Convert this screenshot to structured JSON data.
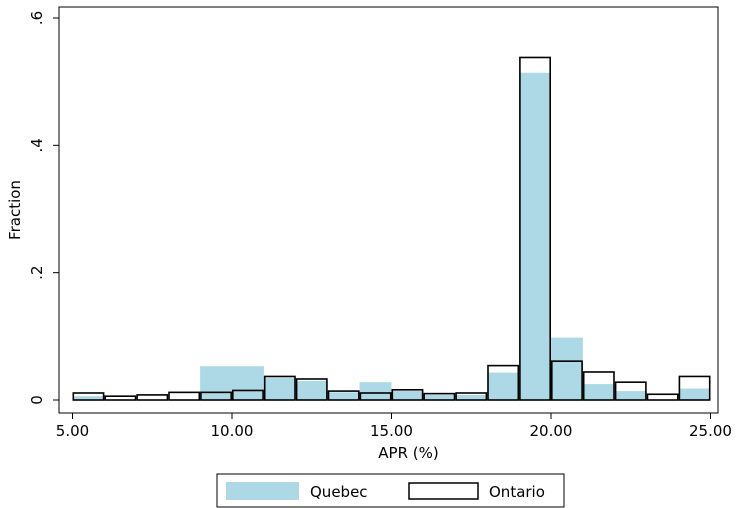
{
  "chart_data": {
    "type": "bar",
    "subtype": "overlaid-histogram",
    "xlabel": "APR (%)",
    "ylabel": "Fraction",
    "xlim": [
      5,
      25
    ],
    "ylim": [
      0,
      0.6
    ],
    "x_ticks": [
      {
        "value": 5,
        "label": "5.00"
      },
      {
        "value": 10,
        "label": "10.00"
      },
      {
        "value": 15,
        "label": "15.00"
      },
      {
        "value": 20,
        "label": "20.00"
      },
      {
        "value": 25,
        "label": "25.00"
      }
    ],
    "y_ticks": [
      {
        "value": 0,
        "label": "0"
      },
      {
        "value": 0.2,
        "label": ".2"
      },
      {
        "value": 0.4,
        "label": ".4"
      },
      {
        "value": 0.6,
        "label": ".6"
      }
    ],
    "grid": false,
    "legend_position": "bottom",
    "series": [
      {
        "name": "Quebec",
        "style": "filled",
        "color": "#add8e6",
        "bins": [
          {
            "x0": 5.0,
            "x1": 6.0,
            "value": 0.006
          },
          {
            "x0": 9.0,
            "x1": 11.0,
            "value": 0.053
          },
          {
            "x0": 11.0,
            "x1": 12.0,
            "value": 0.035
          },
          {
            "x0": 12.0,
            "x1": 13.0,
            "value": 0.03
          },
          {
            "x0": 13.0,
            "x1": 14.0,
            "value": 0.012
          },
          {
            "x0": 14.0,
            "x1": 15.0,
            "value": 0.028
          },
          {
            "x0": 15.0,
            "x1": 16.0,
            "value": 0.014
          },
          {
            "x0": 16.0,
            "x1": 17.0,
            "value": 0.008
          },
          {
            "x0": 17.0,
            "x1": 18.0,
            "value": 0.008
          },
          {
            "x0": 18.0,
            "x1": 19.0,
            "value": 0.043
          },
          {
            "x0": 19.0,
            "x1": 20.0,
            "value": 0.514
          },
          {
            "x0": 20.0,
            "x1": 21.0,
            "value": 0.098
          },
          {
            "x0": 21.0,
            "x1": 22.0,
            "value": 0.025
          },
          {
            "x0": 22.0,
            "x1": 23.0,
            "value": 0.014
          },
          {
            "x0": 24.0,
            "x1": 25.0,
            "value": 0.018
          }
        ]
      },
      {
        "name": "Ontario",
        "style": "outline",
        "color": "#000000",
        "bins": [
          {
            "x0": 5.0,
            "x1": 6.0,
            "value": 0.011
          },
          {
            "x0": 6.0,
            "x1": 7.0,
            "value": 0.006
          },
          {
            "x0": 7.0,
            "x1": 8.0,
            "value": 0.008
          },
          {
            "x0": 8.0,
            "x1": 9.0,
            "value": 0.012
          },
          {
            "x0": 9.0,
            "x1": 10.0,
            "value": 0.012
          },
          {
            "x0": 10.0,
            "x1": 11.0,
            "value": 0.015
          },
          {
            "x0": 11.0,
            "x1": 12.0,
            "value": 0.037
          },
          {
            "x0": 12.0,
            "x1": 13.0,
            "value": 0.033
          },
          {
            "x0": 13.0,
            "x1": 14.0,
            "value": 0.014
          },
          {
            "x0": 14.0,
            "x1": 15.0,
            "value": 0.011
          },
          {
            "x0": 15.0,
            "x1": 16.0,
            "value": 0.016
          },
          {
            "x0": 16.0,
            "x1": 17.0,
            "value": 0.01
          },
          {
            "x0": 17.0,
            "x1": 18.0,
            "value": 0.011
          },
          {
            "x0": 18.0,
            "x1": 19.0,
            "value": 0.054
          },
          {
            "x0": 19.0,
            "x1": 20.0,
            "value": 0.538
          },
          {
            "x0": 20.0,
            "x1": 21.0,
            "value": 0.061
          },
          {
            "x0": 21.0,
            "x1": 22.0,
            "value": 0.044
          },
          {
            "x0": 22.0,
            "x1": 23.0,
            "value": 0.028
          },
          {
            "x0": 23.0,
            "x1": 24.0,
            "value": 0.009
          },
          {
            "x0": 24.0,
            "x1": 25.0,
            "value": 0.037
          }
        ]
      }
    ]
  }
}
